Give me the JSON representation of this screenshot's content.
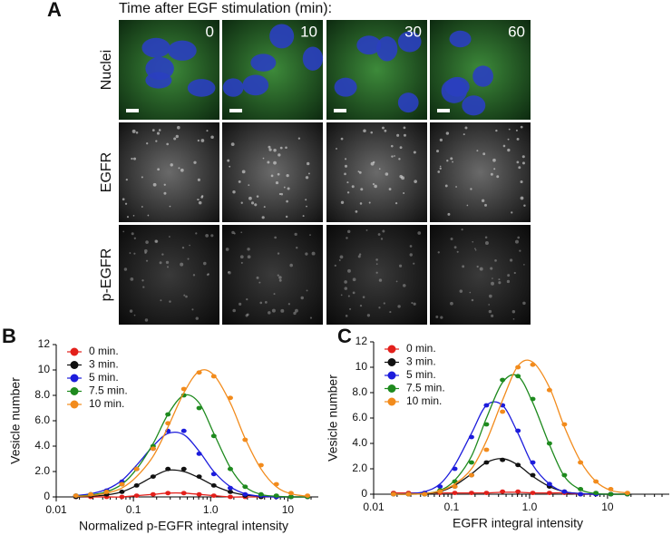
{
  "panel_labels": [
    "A",
    "B",
    "C"
  ],
  "panel_a": {
    "title": "Time after EGF stimulation (min):",
    "columns": [
      "0",
      "10",
      "30",
      "60"
    ],
    "rows": [
      {
        "label": "Nuclei",
        "color": "#1f1fd6"
      },
      {
        "label": "EGFR",
        "color": "#22cc22"
      },
      {
        "label": "p-EGFR",
        "color": "#e01b1b"
      }
    ]
  },
  "chart_data": [
    {
      "type": "scatter",
      "x_label": "Normalized p-EGFR integral intensity",
      "y_label": "Vesicle number",
      "log_x": true,
      "legend": "upper-left",
      "xlim": [
        0.01,
        20
      ],
      "xticks": [
        0.01,
        0.1,
        {
          "value": 1,
          "label": "1.0"
        },
        10
      ],
      "ylim": [
        0,
        12
      ],
      "yticks": [
        0,
        {
          "value": 2,
          "label": "2.0"
        },
        {
          "value": 4,
          "label": "4.0"
        },
        {
          "value": 6,
          "label": "6.0"
        },
        {
          "value": 8,
          "label": "8.0"
        },
        10,
        12
      ],
      "x": [
        0.018,
        0.028,
        0.045,
        0.071,
        0.11,
        0.18,
        0.28,
        0.45,
        0.71,
        1.1,
        1.8,
        2.8,
        4.5,
        7.1,
        11,
        18
      ],
      "series": [
        {
          "name": "0 min.",
          "color": "#e3201b",
          "values": [
            0,
            0,
            0,
            0,
            0.1,
            0.2,
            0.3,
            0.3,
            0.2,
            0.1,
            0,
            0,
            0,
            0,
            0,
            0
          ],
          "fit": [
            0,
            0,
            0,
            0,
            0.1,
            0.2,
            0.3,
            0.3,
            0.2,
            0.1,
            0,
            0,
            0,
            0,
            0,
            0
          ]
        },
        {
          "name": "3 min.",
          "color": "#111111",
          "values": [
            0,
            0.1,
            0.2,
            0.4,
            0.9,
            1.6,
            2.2,
            2.2,
            1.6,
            0.9,
            0.4,
            0.1,
            0,
            0,
            0,
            0
          ],
          "fit": [
            0,
            0.05,
            0.15,
            0.4,
            0.9,
            1.6,
            2.1,
            2.0,
            1.5,
            0.9,
            0.4,
            0.15,
            0.05,
            0,
            0,
            0
          ]
        },
        {
          "name": "5 min.",
          "color": "#1c1cdc",
          "values": [
            0.1,
            0.2,
            0.5,
            1.2,
            2.2,
            3.8,
            5.2,
            5.2,
            3.4,
            1.8,
            0.7,
            0.2,
            0.1,
            0,
            0,
            0
          ],
          "fit": [
            0.1,
            0.25,
            0.6,
            1.3,
            2.5,
            4.0,
            5.0,
            4.9,
            3.6,
            2.0,
            0.8,
            0.25,
            0.05,
            0,
            0,
            0
          ]
        },
        {
          "name": "7.5 min.",
          "color": "#1e8a1e",
          "values": [
            0.1,
            0.2,
            0.4,
            1.0,
            2.2,
            4.0,
            6.5,
            8.0,
            7.0,
            4.8,
            2.2,
            0.8,
            0.2,
            0.1,
            0,
            0
          ],
          "fit": [
            0.05,
            0.15,
            0.4,
            1.0,
            2.2,
            4.2,
            6.5,
            8.0,
            7.4,
            5.0,
            2.3,
            0.8,
            0.2,
            0.05,
            0,
            0
          ]
        },
        {
          "name": "10 min.",
          "color": "#f28b1c",
          "values": [
            0.1,
            0.2,
            0.4,
            1.0,
            2.2,
            3.8,
            5.8,
            8.5,
            9.8,
            9.5,
            7.8,
            4.5,
            2.5,
            1.0,
            0.3,
            0.1
          ],
          "fit": [
            0.05,
            0.1,
            0.3,
            0.7,
            1.6,
            3.2,
            5.5,
            8.2,
            9.9,
            9.6,
            7.4,
            4.6,
            2.2,
            0.8,
            0.25,
            0.05
          ]
        }
      ]
    },
    {
      "type": "scatter",
      "x_label": "EGFR integral intensity",
      "y_label": "Vesicle number",
      "log_x": true,
      "legend": "upper-left",
      "xlim": [
        0.01,
        50
      ],
      "xticks": [
        0.01,
        0.1,
        {
          "value": 1,
          "label": "1.0"
        },
        10
      ],
      "ylim": [
        0,
        12
      ],
      "yticks": [
        0,
        {
          "value": 2,
          "label": "2.0"
        },
        {
          "value": 4,
          "label": "4.0"
        },
        {
          "value": 6,
          "label": "6.0"
        },
        {
          "value": 8,
          "label": "8.0"
        },
        10,
        12
      ],
      "x": [
        0.018,
        0.028,
        0.045,
        0.071,
        0.11,
        0.18,
        0.28,
        0.45,
        0.71,
        1.1,
        1.8,
        2.8,
        4.5,
        7.1,
        11,
        18
      ],
      "series": [
        {
          "name": "0 min.",
          "color": "#e3201b",
          "values": [
            0.1,
            0.1,
            0.1,
            0.1,
            0.1,
            0.1,
            0.1,
            0.2,
            0.2,
            0.1,
            0.1,
            0.1,
            0,
            0,
            0,
            0
          ],
          "fit": [
            0.1,
            0.1,
            0.1,
            0.1,
            0.1,
            0.1,
            0.1,
            0.15,
            0.15,
            0.1,
            0.1,
            0.1,
            0,
            0,
            0,
            0
          ]
        },
        {
          "name": "3 min.",
          "color": "#111111",
          "values": [
            0,
            0,
            0,
            0.2,
            0.6,
            1.5,
            2.5,
            2.7,
            2.3,
            1.5,
            0.6,
            0.2,
            0,
            0,
            0,
            0
          ],
          "fit": [
            0,
            0,
            0.05,
            0.2,
            0.7,
            1.6,
            2.5,
            2.8,
            2.3,
            1.4,
            0.6,
            0.2,
            0.05,
            0,
            0,
            0
          ]
        },
        {
          "name": "5 min.",
          "color": "#1c1cdc",
          "values": [
            0,
            0,
            0.1,
            0.6,
            2.0,
            4.5,
            7.0,
            7.0,
            5.0,
            2.5,
            0.8,
            0.2,
            0,
            0,
            0,
            0
          ],
          "fit": [
            0,
            0.05,
            0.2,
            0.8,
            2.3,
            4.8,
            7.0,
            7.0,
            4.8,
            2.3,
            0.8,
            0.2,
            0.05,
            0,
            0,
            0
          ]
        },
        {
          "name": "7.5 min.",
          "color": "#1e8a1e",
          "values": [
            0,
            0,
            0,
            0.3,
            1.0,
            2.5,
            5.5,
            9.0,
            9.3,
            7.5,
            4.0,
            1.5,
            0.4,
            0.1,
            0,
            0
          ],
          "fit": [
            0,
            0,
            0.05,
            0.3,
            1.1,
            3.0,
            6.0,
            8.8,
            9.3,
            7.2,
            3.9,
            1.4,
            0.35,
            0.05,
            0,
            0
          ]
        },
        {
          "name": "10 min.",
          "color": "#f28b1c",
          "values": [
            0,
            0,
            0,
            0.2,
            0.6,
            1.5,
            3.5,
            6.5,
            10,
            10.2,
            8.2,
            5.5,
            2.5,
            1.0,
            0.4,
            0.1
          ],
          "fit": [
            0,
            0,
            0.05,
            0.25,
            0.8,
            2.0,
            4.2,
            7.4,
            10.1,
            10.4,
            8.4,
            5.3,
            2.6,
            1.0,
            0.3,
            0.1
          ]
        }
      ]
    }
  ]
}
